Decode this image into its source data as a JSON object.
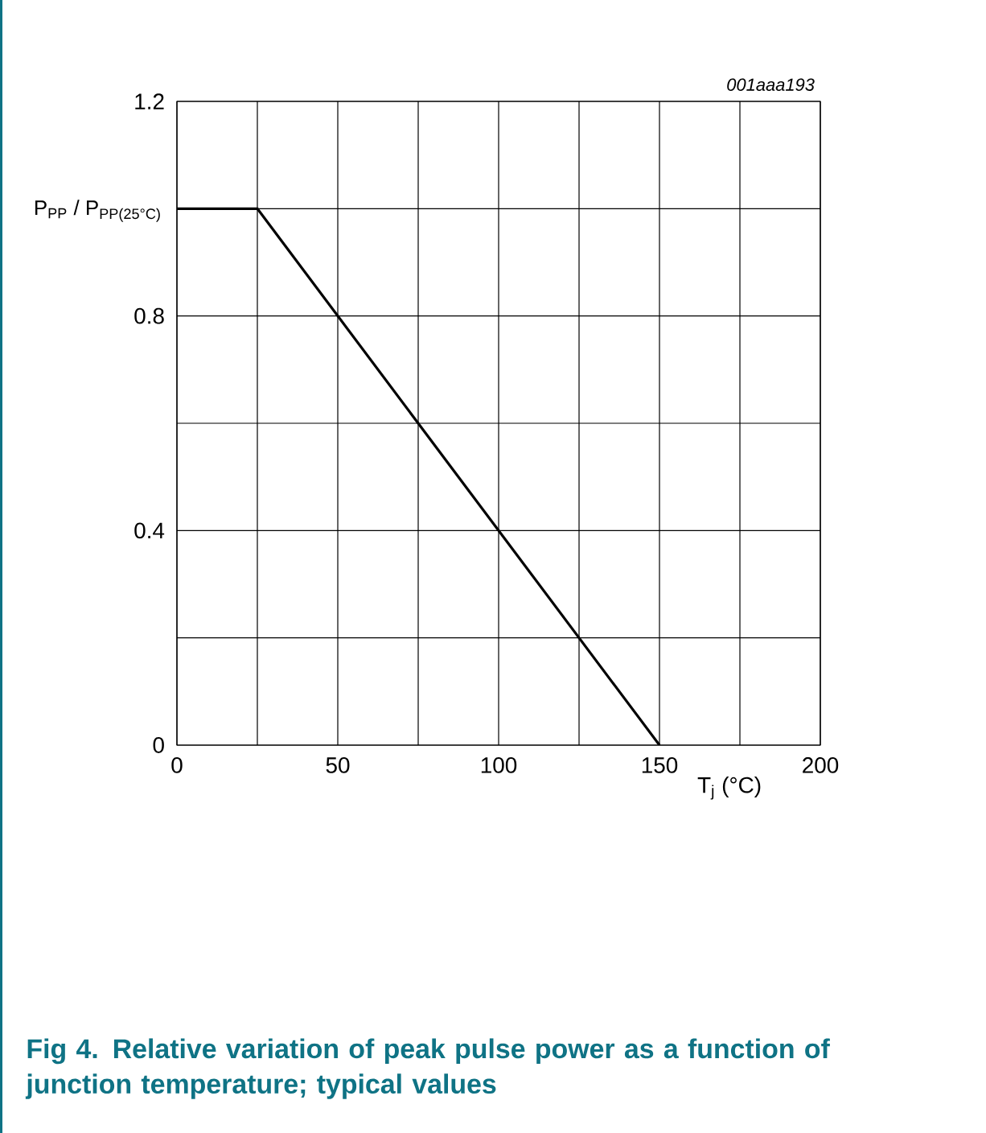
{
  "chart_data": {
    "type": "line",
    "title": "Fig 4.   Relative variation of peak pulse power as a function of junction temperature; typical values",
    "xlabel": "T$_{j}$ (°C)",
    "ylabel": "P$_{PP}$ / P$_{PP(25°C)}$",
    "annotations": [
      "001aaa193"
    ],
    "x": [
      0,
      25,
      150
    ],
    "series": [
      {
        "color": "#000000",
        "values": [
          1,
          1,
          0
        ]
      }
    ],
    "xlim": [
      0,
      200
    ],
    "xticks": [
      0,
      {
        "value": 25,
        "label": null
      },
      50,
      {
        "value": 75,
        "label": null
      },
      100,
      {
        "value": 125,
        "label": null
      },
      150,
      {
        "value": 175,
        "label": null
      },
      200
    ],
    "ylim": [
      0,
      1.2
    ],
    "yticks": [
      0,
      {
        "value": 0.2,
        "label": null
      },
      0.4,
      {
        "value": 0.6,
        "label": null
      },
      0.8,
      {
        "value": 1.0,
        "label": null
      },
      1.2
    ],
    "grid": true,
    "marker": "none",
    "line_style": "solid"
  }
}
